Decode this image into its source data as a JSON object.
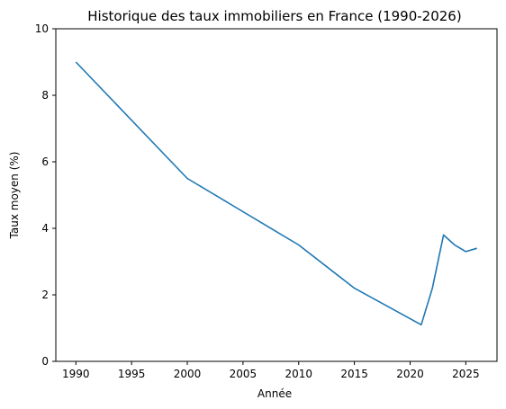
{
  "chart_data": {
    "type": "line",
    "title": "Historique des taux immobiliers en France (1990-2026)",
    "xlabel": "Année",
    "ylabel": "Taux moyen (%)",
    "xlim": [
      1988.2,
      2027.8
    ],
    "ylim": [
      0,
      10
    ],
    "xticks": [
      1990,
      1995,
      2000,
      2005,
      2010,
      2015,
      2020,
      2025
    ],
    "yticks": [
      0,
      2,
      4,
      6,
      8,
      10
    ],
    "grid": false,
    "line_color": "#1f77b4",
    "series": [
      {
        "x": [
          1990,
          2000,
          2010,
          2015,
          2021,
          2022,
          2023,
          2024,
          2025,
          2026
        ],
        "y": [
          9.0,
          5.5,
          3.5,
          2.2,
          1.1,
          2.2,
          3.8,
          3.5,
          3.3,
          3.4
        ]
      }
    ]
  }
}
